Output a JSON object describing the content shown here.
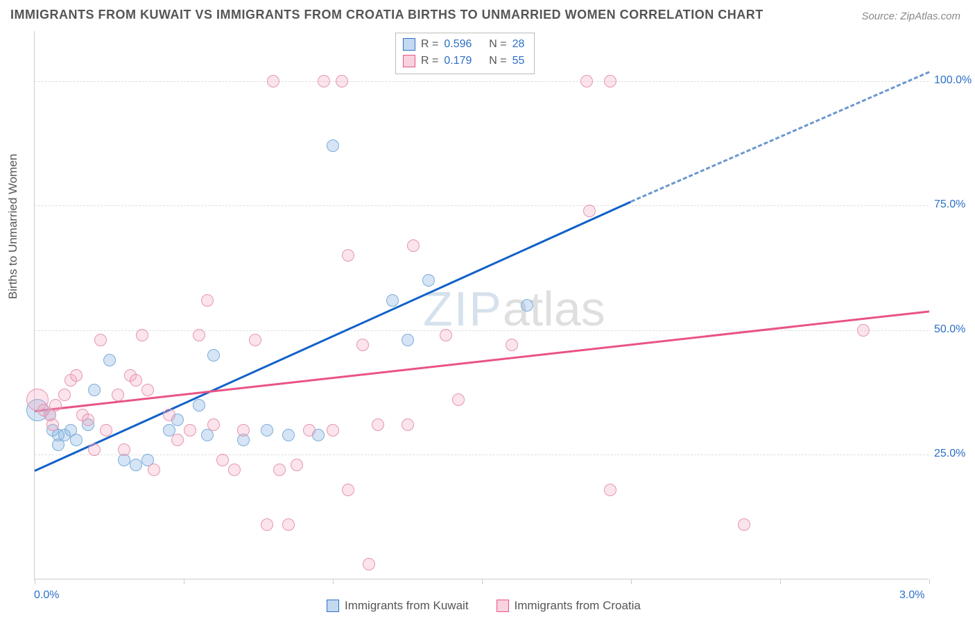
{
  "title": "IMMIGRANTS FROM KUWAIT VS IMMIGRANTS FROM CROATIA BIRTHS TO UNMARRIED WOMEN CORRELATION CHART",
  "source": "Source: ZipAtlas.com",
  "watermark": {
    "zip": "ZIP",
    "atlas": "atlas"
  },
  "chart": {
    "type": "scatter",
    "y_label": "Births to Unmarried Women",
    "xlim": [
      0.0,
      3.0
    ],
    "ylim": [
      0,
      110
    ],
    "y_ticks": [
      {
        "v": 25,
        "label": "25.0%"
      },
      {
        "v": 50,
        "label": "50.0%"
      },
      {
        "v": 75,
        "label": "75.0%"
      },
      {
        "v": 100,
        "label": "100.0%"
      }
    ],
    "x_ticks_minor": [
      0,
      0.5,
      1.0,
      1.5,
      2.0,
      2.5,
      3.0
    ],
    "x_ticks_labeled": [
      {
        "v": 0.0,
        "label": "0.0%"
      },
      {
        "v": 3.0,
        "label": "3.0%"
      }
    ],
    "colors": {
      "blue_line": "#1161c9",
      "blue_dash": "#6b97cf",
      "blue_marker_fill": "rgba(136,180,226,0.35)",
      "blue_marker_stroke": "#7cabd9",
      "pink_line": "#e95383",
      "pink_marker_fill": "rgba(242,166,189,0.3)",
      "pink_marker_stroke": "#e596b0",
      "grid": "#dddddd",
      "axis": "#cccccc",
      "background": "#ffffff",
      "tick_label": "#2d6fc7",
      "text": "#555555"
    },
    "marker_radius": 9,
    "marker_radius_large": 16,
    "series": [
      {
        "name": "Immigrants from Kuwait",
        "color_key": "blue",
        "R": "0.596",
        "N": "28",
        "trend": {
          "x0": 0.0,
          "y0": 22,
          "x1": 2.0,
          "y1": 76,
          "x1_dash": 3.0,
          "y1_dash": 102
        },
        "points": [
          {
            "x": 0.01,
            "y": 34,
            "r": 16
          },
          {
            "x": 0.05,
            "y": 33
          },
          {
            "x": 0.06,
            "y": 30
          },
          {
            "x": 0.08,
            "y": 29
          },
          {
            "x": 0.1,
            "y": 29
          },
          {
            "x": 0.14,
            "y": 28
          },
          {
            "x": 0.12,
            "y": 30
          },
          {
            "x": 0.18,
            "y": 31
          },
          {
            "x": 0.25,
            "y": 44
          },
          {
            "x": 0.3,
            "y": 24
          },
          {
            "x": 0.34,
            "y": 23
          },
          {
            "x": 0.38,
            "y": 24
          },
          {
            "x": 0.45,
            "y": 30
          },
          {
            "x": 0.48,
            "y": 32
          },
          {
            "x": 0.55,
            "y": 35
          },
          {
            "x": 0.58,
            "y": 29
          },
          {
            "x": 0.6,
            "y": 45
          },
          {
            "x": 0.7,
            "y": 28
          },
          {
            "x": 0.78,
            "y": 30
          },
          {
            "x": 0.85,
            "y": 29
          },
          {
            "x": 0.95,
            "y": 29
          },
          {
            "x": 1.0,
            "y": 87
          },
          {
            "x": 1.2,
            "y": 56
          },
          {
            "x": 1.25,
            "y": 48
          },
          {
            "x": 1.32,
            "y": 60
          },
          {
            "x": 1.65,
            "y": 55
          },
          {
            "x": 0.08,
            "y": 27
          },
          {
            "x": 0.2,
            "y": 38
          }
        ]
      },
      {
        "name": "Immigrants from Croatia",
        "color_key": "pink",
        "R": "0.179",
        "N": "55",
        "trend": {
          "x0": 0.0,
          "y0": 34,
          "x1": 3.0,
          "y1": 54
        },
        "points": [
          {
            "x": 0.01,
            "y": 36,
            "r": 16
          },
          {
            "x": 0.03,
            "y": 34
          },
          {
            "x": 0.05,
            "y": 33
          },
          {
            "x": 0.07,
            "y": 35
          },
          {
            "x": 0.1,
            "y": 37
          },
          {
            "x": 0.12,
            "y": 40
          },
          {
            "x": 0.14,
            "y": 41
          },
          {
            "x": 0.16,
            "y": 33
          },
          {
            "x": 0.18,
            "y": 32
          },
          {
            "x": 0.2,
            "y": 26
          },
          {
            "x": 0.22,
            "y": 48
          },
          {
            "x": 0.24,
            "y": 30
          },
          {
            "x": 0.28,
            "y": 37
          },
          {
            "x": 0.3,
            "y": 26
          },
          {
            "x": 0.32,
            "y": 41
          },
          {
            "x": 0.34,
            "y": 40
          },
          {
            "x": 0.36,
            "y": 49
          },
          {
            "x": 0.38,
            "y": 38
          },
          {
            "x": 0.4,
            "y": 22
          },
          {
            "x": 0.45,
            "y": 33
          },
          {
            "x": 0.48,
            "y": 28
          },
          {
            "x": 0.52,
            "y": 30
          },
          {
            "x": 0.55,
            "y": 49
          },
          {
            "x": 0.58,
            "y": 56
          },
          {
            "x": 0.6,
            "y": 31
          },
          {
            "x": 0.63,
            "y": 24
          },
          {
            "x": 0.67,
            "y": 22
          },
          {
            "x": 0.7,
            "y": 30
          },
          {
            "x": 0.74,
            "y": 48
          },
          {
            "x": 0.78,
            "y": 11
          },
          {
            "x": 0.8,
            "y": 100
          },
          {
            "x": 0.82,
            "y": 22
          },
          {
            "x": 0.85,
            "y": 11
          },
          {
            "x": 0.88,
            "y": 23
          },
          {
            "x": 0.92,
            "y": 30
          },
          {
            "x": 0.97,
            "y": 100
          },
          {
            "x": 1.0,
            "y": 30
          },
          {
            "x": 1.03,
            "y": 100
          },
          {
            "x": 1.05,
            "y": 18
          },
          {
            "x": 1.05,
            "y": 65
          },
          {
            "x": 1.1,
            "y": 47
          },
          {
            "x": 1.12,
            "y": 3
          },
          {
            "x": 1.15,
            "y": 31
          },
          {
            "x": 1.25,
            "y": 31
          },
          {
            "x": 1.27,
            "y": 67
          },
          {
            "x": 1.38,
            "y": 49
          },
          {
            "x": 1.42,
            "y": 36
          },
          {
            "x": 1.6,
            "y": 47
          },
          {
            "x": 1.85,
            "y": 100
          },
          {
            "x": 1.86,
            "y": 74
          },
          {
            "x": 1.93,
            "y": 18
          },
          {
            "x": 1.93,
            "y": 100
          },
          {
            "x": 2.38,
            "y": 11
          },
          {
            "x": 2.78,
            "y": 50
          },
          {
            "x": 0.06,
            "y": 31
          }
        ]
      }
    ]
  },
  "stats_box": {
    "rows": [
      {
        "swatch": "blue",
        "R_label": "R =",
        "R": "0.596",
        "N_label": "N =",
        "N": "28"
      },
      {
        "swatch": "pink",
        "R_label": "R =",
        "R": "0.179",
        "N_label": "N =",
        "N": "55"
      }
    ]
  },
  "bottom_legend": [
    {
      "swatch": "blue",
      "label": "Immigrants from Kuwait"
    },
    {
      "swatch": "pink",
      "label": "Immigrants from Croatia"
    }
  ]
}
